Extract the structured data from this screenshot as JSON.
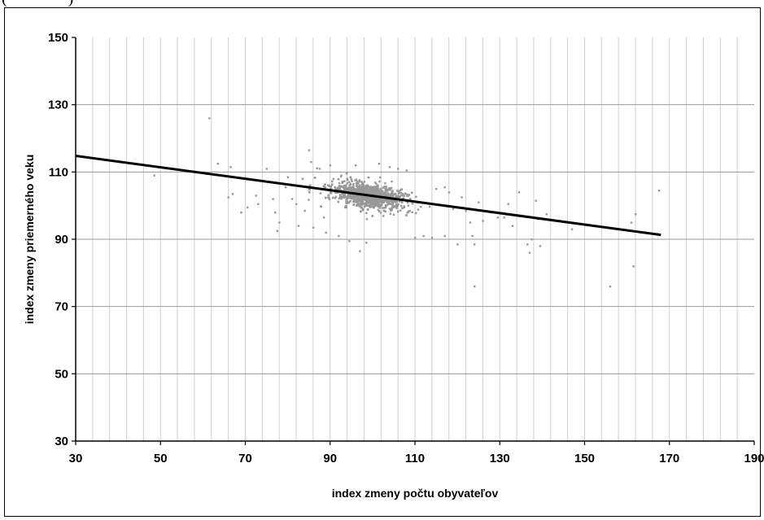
{
  "caption_fragment": "(               )",
  "chart_data": {
    "type": "scatter",
    "title": "",
    "xlabel": "index zmeny počtu obyvateľov",
    "ylabel": "index zmeny priemerného veku",
    "xlim": [
      30,
      190
    ],
    "ylim": [
      30,
      150
    ],
    "x_ticks": [
      30,
      50,
      70,
      90,
      110,
      130,
      150,
      170,
      190
    ],
    "y_ticks": [
      30,
      50,
      70,
      90,
      110,
      130,
      150
    ],
    "x_tick_labels": [
      "30",
      "50",
      "70",
      "90",
      "110",
      "130",
      "150",
      "170",
      "190"
    ],
    "y_tick_labels": [
      "30",
      "50",
      "70",
      "90",
      "110",
      "130",
      "150"
    ],
    "grid": {
      "vertical_step": 4,
      "horizontal_step": 20
    },
    "point_color": "#999999",
    "line_color": "#000000",
    "trendline": {
      "x": [
        30,
        168
      ],
      "y": [
        114.8,
        91.3
      ]
    },
    "cluster": {
      "center": [
        99,
        103
      ],
      "approx_range_x": [
        80,
        125
      ],
      "approx_range_y": [
        87,
        113
      ]
    },
    "points": [
      [
        61.5,
        126
      ],
      [
        63.5,
        112.5
      ],
      [
        48.5,
        109
      ],
      [
        66.5,
        111.5
      ],
      [
        67,
        103.5
      ],
      [
        66,
        102.5
      ],
      [
        69,
        98
      ],
      [
        70.5,
        99.5
      ],
      [
        72.5,
        103
      ],
      [
        73,
        100.5
      ],
      [
        75,
        111
      ],
      [
        75.5,
        107
      ],
      [
        76.5,
        102
      ],
      [
        77,
        98
      ],
      [
        77.5,
        92.5
      ],
      [
        78,
        95
      ],
      [
        79.5,
        105.5
      ],
      [
        80,
        108.5
      ],
      [
        81,
        102
      ],
      [
        82,
        100.5
      ],
      [
        82.5,
        94
      ],
      [
        83.5,
        108
      ],
      [
        84,
        98.5
      ],
      [
        85,
        116.5
      ],
      [
        85.5,
        113
      ],
      [
        86,
        93.5
      ],
      [
        87.5,
        111
      ],
      [
        88.5,
        96.5
      ],
      [
        89,
        92
      ],
      [
        90,
        112
      ],
      [
        92,
        91
      ],
      [
        94.5,
        89.5
      ],
      [
        96,
        112
      ],
      [
        97,
        86.5
      ],
      [
        98.5,
        89
      ],
      [
        101.5,
        112.5
      ],
      [
        104,
        111.5
      ],
      [
        106,
        111
      ],
      [
        108,
        110.5
      ],
      [
        110,
        90.5
      ],
      [
        112,
        91
      ],
      [
        114,
        90.5
      ],
      [
        115,
        105
      ],
      [
        117,
        105.5
      ],
      [
        117,
        91
      ],
      [
        118,
        104
      ],
      [
        119,
        99
      ],
      [
        120,
        88.5
      ],
      [
        121,
        102.5
      ],
      [
        122,
        98.5
      ],
      [
        123,
        95
      ],
      [
        123.5,
        91
      ],
      [
        124,
        88.5
      ],
      [
        124,
        76
      ],
      [
        125,
        101
      ],
      [
        126,
        95.5
      ],
      [
        128,
        98
      ],
      [
        129.5,
        96.5
      ],
      [
        131,
        96.5
      ],
      [
        132,
        100.5
      ],
      [
        133,
        94
      ],
      [
        134.5,
        104
      ],
      [
        136.5,
        88.5
      ],
      [
        137,
        86
      ],
      [
        137.5,
        90
      ],
      [
        138.5,
        101.5
      ],
      [
        139,
        96
      ],
      [
        139.5,
        88
      ],
      [
        141,
        97.5
      ],
      [
        147,
        93
      ],
      [
        156,
        76
      ],
      [
        161,
        95
      ],
      [
        161.5,
        82
      ],
      [
        162,
        97.5
      ],
      [
        167.5,
        104.5
      ]
    ]
  }
}
